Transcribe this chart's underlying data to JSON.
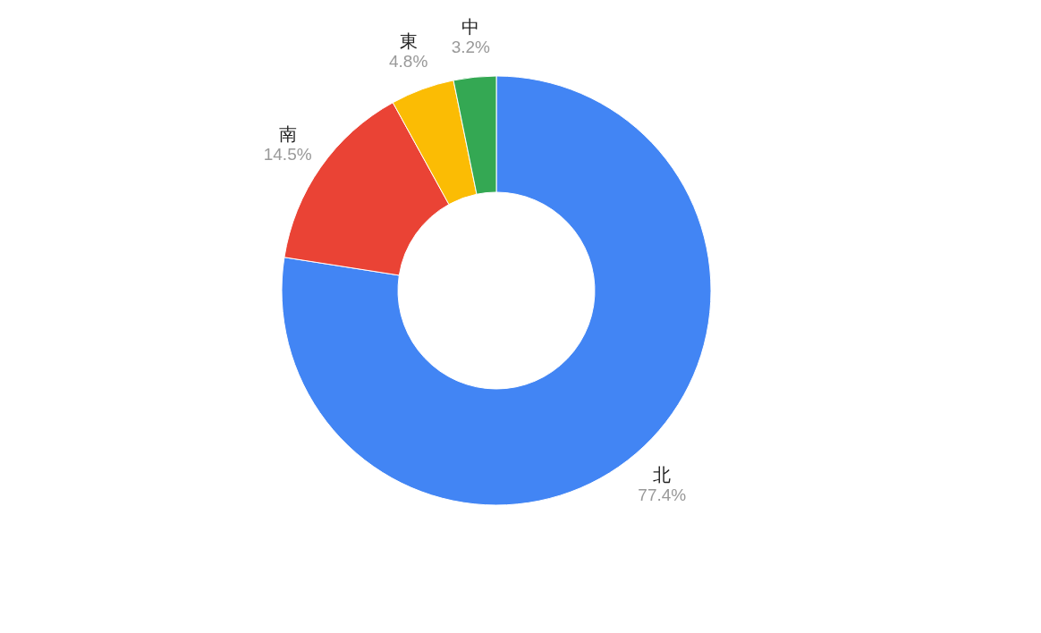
{
  "chart_data": {
    "type": "donut",
    "categories": [
      "北",
      "南",
      "東",
      "中"
    ],
    "values": [
      77.4,
      14.5,
      4.8,
      3.2
    ],
    "colors": [
      "#4285f4",
      "#ea4335",
      "#fbbc04",
      "#34a853"
    ],
    "value_labels": [
      "77.4%",
      "14.5%",
      "4.8%",
      "3.2%"
    ],
    "legend": false
  }
}
